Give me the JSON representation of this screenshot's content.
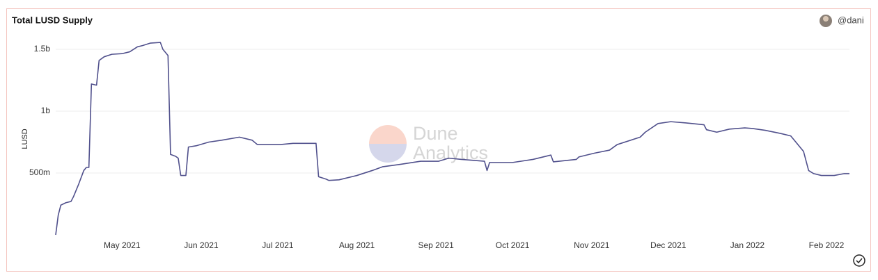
{
  "chart_data": {
    "type": "line",
    "title": "Total LUSD Supply",
    "author": "@dani",
    "ylabel": "LUSD",
    "watermark": [
      "Dune",
      "Analytics"
    ],
    "xlim": [
      "2021-04-05",
      "2022-02-10"
    ],
    "xticks": [
      {
        "value": "2021-05-01",
        "label": "May 2021"
      },
      {
        "value": "2021-06-01",
        "label": "Jun 2021"
      },
      {
        "value": "2021-07-01",
        "label": "Jul 2021"
      },
      {
        "value": "2021-08-01",
        "label": "Aug 2021"
      },
      {
        "value": "2021-09-01",
        "label": "Sep 2021"
      },
      {
        "value": "2021-10-01",
        "label": "Oct 2021"
      },
      {
        "value": "2021-11-01",
        "label": "Nov 2021"
      },
      {
        "value": "2021-12-01",
        "label": "Dec 2021"
      },
      {
        "value": "2022-01-01",
        "label": "Jan 2022"
      },
      {
        "value": "2022-02-01",
        "label": "Feb 2022"
      }
    ],
    "ylim": [
      0,
      1600000000
    ],
    "yticks": [
      {
        "value": 500000000,
        "label": "500m"
      },
      {
        "value": 1000000000,
        "label": "1b"
      },
      {
        "value": 1500000000,
        "label": "1.5b"
      }
    ],
    "grid": true,
    "x": [
      "2021-04-05",
      "2021-04-06",
      "2021-04-07",
      "2021-04-09",
      "2021-04-11",
      "2021-04-12",
      "2021-04-14",
      "2021-04-16",
      "2021-04-17",
      "2021-04-18",
      "2021-04-19",
      "2021-04-21",
      "2021-04-22",
      "2021-04-24",
      "2021-04-27",
      "2021-05-01",
      "2021-05-04",
      "2021-05-07",
      "2021-05-09",
      "2021-05-12",
      "2021-05-16",
      "2021-05-17",
      "2021-05-19",
      "2021-05-20",
      "2021-05-22",
      "2021-05-23",
      "2021-05-24",
      "2021-05-26",
      "2021-05-27",
      "2021-05-30",
      "2021-06-04",
      "2021-06-09",
      "2021-06-16",
      "2021-06-21",
      "2021-06-23",
      "2021-07-02",
      "2021-07-07",
      "2021-07-16",
      "2021-07-17",
      "2021-07-20",
      "2021-07-21",
      "2021-07-25",
      "2021-08-01",
      "2021-08-07",
      "2021-08-11",
      "2021-08-18",
      "2021-08-26",
      "2021-09-02",
      "2021-09-06",
      "2021-09-11",
      "2021-09-20",
      "2021-09-21",
      "2021-09-22",
      "2021-10-01",
      "2021-10-09",
      "2021-10-16",
      "2021-10-17",
      "2021-10-26",
      "2021-10-27",
      "2021-11-02",
      "2021-11-08",
      "2021-11-11",
      "2021-11-20",
      "2021-11-22",
      "2021-11-27",
      "2021-12-02",
      "2021-12-08",
      "2021-12-15",
      "2021-12-16",
      "2021-12-20",
      "2021-12-25",
      "2021-12-31",
      "2022-01-03",
      "2022-01-08",
      "2022-01-14",
      "2022-01-18",
      "2022-01-20",
      "2022-01-23",
      "2022-01-25",
      "2022-01-27",
      "2022-01-30",
      "2022-02-04",
      "2022-02-08",
      "2022-02-10"
    ],
    "series": [
      {
        "name": "LUSD",
        "color": "#50508c",
        "values": [
          0,
          160000000,
          240000000,
          260000000,
          270000000,
          310000000,
          410000000,
          520000000,
          545000000,
          545000000,
          1220000000,
          1210000000,
          1410000000,
          1440000000,
          1460000000,
          1465000000,
          1480000000,
          1520000000,
          1530000000,
          1550000000,
          1556000000,
          1500000000,
          1450000000,
          650000000,
          635000000,
          620000000,
          480000000,
          480000000,
          710000000,
          720000000,
          750000000,
          765000000,
          790000000,
          765000000,
          730000000,
          730000000,
          740000000,
          740000000,
          470000000,
          450000000,
          440000000,
          445000000,
          480000000,
          520000000,
          550000000,
          570000000,
          595000000,
          595000000,
          620000000,
          610000000,
          595000000,
          520000000,
          585000000,
          585000000,
          610000000,
          645000000,
          590000000,
          610000000,
          630000000,
          660000000,
          685000000,
          730000000,
          790000000,
          830000000,
          900000000,
          915000000,
          905000000,
          890000000,
          850000000,
          830000000,
          855000000,
          865000000,
          860000000,
          845000000,
          820000000,
          800000000,
          750000000,
          675000000,
          520000000,
          495000000,
          480000000,
          480000000,
          495000000,
          495000000
        ]
      }
    ]
  }
}
